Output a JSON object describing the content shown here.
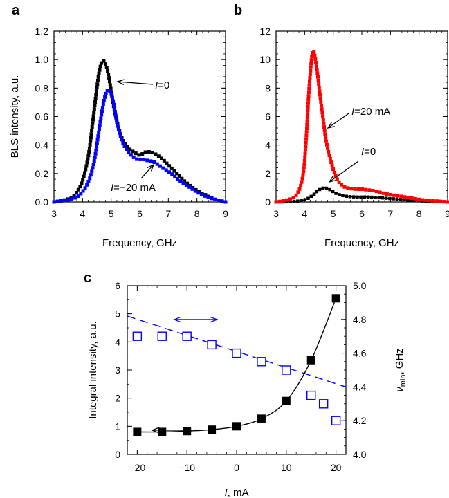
{
  "chart_data": [
    {
      "panel": "a",
      "type": "line",
      "xlabel": "Frequency, GHz",
      "ylabel": "BLS intensity, a.u.",
      "xlim": [
        3,
        9
      ],
      "ylim": [
        0,
        1.2
      ],
      "xticks": [
        "3",
        "4",
        "5",
        "6",
        "7",
        "8",
        "9"
      ],
      "yticks": [
        "0.0",
        "0.2",
        "0.4",
        "0.6",
        "0.8",
        "1.0",
        "1.2"
      ],
      "annotations": [
        {
          "text": "I=0",
          "italic_prefix": "I",
          "rest": "=0"
        },
        {
          "text": "I=−20 mA",
          "italic_prefix": "I",
          "rest": "=−20 mA"
        }
      ],
      "series": [
        {
          "color": "#000000",
          "marker": "square",
          "x": [
            3.0,
            3.3,
            3.6,
            3.8,
            4.0,
            4.2,
            4.35,
            4.5,
            4.6,
            4.7,
            4.8,
            4.9,
            5.0,
            5.1,
            5.25,
            5.4,
            5.6,
            5.8,
            6.0,
            6.2,
            6.4,
            6.6,
            6.8,
            7.0,
            7.3,
            7.6,
            8.0,
            8.3,
            8.6,
            9.0
          ],
          "y": [
            0.0,
            0.01,
            0.03,
            0.07,
            0.15,
            0.32,
            0.55,
            0.8,
            0.93,
            0.99,
            0.97,
            0.9,
            0.78,
            0.66,
            0.53,
            0.44,
            0.38,
            0.35,
            0.33,
            0.35,
            0.35,
            0.33,
            0.3,
            0.26,
            0.2,
            0.14,
            0.08,
            0.05,
            0.02,
            0.0
          ]
        },
        {
          "color": "#0000ff",
          "marker": "square",
          "x": [
            3.0,
            3.3,
            3.6,
            3.9,
            4.2,
            4.4,
            4.55,
            4.7,
            4.8,
            4.9,
            5.0,
            5.1,
            5.2,
            5.35,
            5.5,
            5.7,
            5.9,
            6.1,
            6.3,
            6.5,
            6.8,
            7.1,
            7.4,
            7.7,
            8.0,
            8.3,
            8.6,
            9.0
          ],
          "y": [
            0.0,
            0.01,
            0.02,
            0.05,
            0.14,
            0.28,
            0.47,
            0.66,
            0.75,
            0.79,
            0.76,
            0.68,
            0.56,
            0.45,
            0.38,
            0.33,
            0.3,
            0.3,
            0.29,
            0.28,
            0.24,
            0.2,
            0.15,
            0.11,
            0.07,
            0.04,
            0.02,
            0.0
          ]
        }
      ]
    },
    {
      "panel": "b",
      "type": "line",
      "xlabel": "Frequency, GHz",
      "ylabel": "",
      "xlim": [
        3,
        9
      ],
      "ylim": [
        0,
        12
      ],
      "xticks": [
        "3",
        "4",
        "5",
        "6",
        "7",
        "8",
        "9"
      ],
      "yticks": [
        "0",
        "2",
        "4",
        "6",
        "8",
        "10",
        "12"
      ],
      "annotations": [
        {
          "text": "I=20 mA",
          "italic_prefix": "I",
          "rest": "=20 mA"
        },
        {
          "text": "I=0",
          "italic_prefix": "I",
          "rest": "=0"
        }
      ],
      "series": [
        {
          "color": "#ff0000",
          "marker": "square",
          "x": [
            3.0,
            3.3,
            3.6,
            3.8,
            3.95,
            4.05,
            4.15,
            4.25,
            4.3,
            4.35,
            4.45,
            4.55,
            4.65,
            4.75,
            4.9,
            5.05,
            5.2,
            5.4,
            5.6,
            5.8,
            6.0,
            6.2,
            6.4,
            6.6,
            6.9,
            7.2,
            7.5,
            7.8,
            8.1,
            8.4,
            8.7,
            9.0
          ],
          "y": [
            0.0,
            0.1,
            0.3,
            0.8,
            2.0,
            4.3,
            7.8,
            10.2,
            10.6,
            10.3,
            9.0,
            7.3,
            5.8,
            4.3,
            3.0,
            2.0,
            1.4,
            1.05,
            0.95,
            0.9,
            0.9,
            0.85,
            0.8,
            0.7,
            0.55,
            0.45,
            0.35,
            0.25,
            0.15,
            0.1,
            0.05,
            0.0
          ]
        },
        {
          "color": "#000000",
          "marker": "square",
          "x": [
            3.0,
            3.5,
            4.0,
            4.3,
            4.5,
            4.7,
            4.9,
            5.1,
            5.4,
            5.8,
            6.2,
            6.6,
            7.0,
            7.5,
            8.0,
            8.5,
            9.0
          ],
          "y": [
            0.0,
            0.02,
            0.15,
            0.5,
            0.85,
            0.99,
            0.85,
            0.6,
            0.42,
            0.35,
            0.35,
            0.3,
            0.24,
            0.15,
            0.08,
            0.03,
            0.0
          ]
        }
      ]
    },
    {
      "panel": "c",
      "type": "scatter",
      "xlabel": "I, mA",
      "ylabel": "Integral intensity, a.u.",
      "ylabel_right": "νmin, GHz",
      "xlim": [
        -22,
        22
      ],
      "ylim": [
        0,
        6
      ],
      "ylim_right": [
        4.0,
        5.0
      ],
      "xticks": [
        "−20",
        "−10",
        "0",
        "10",
        "20"
      ],
      "yticks": [
        "0",
        "1",
        "2",
        "3",
        "4",
        "5",
        "6"
      ],
      "yticks_right": [
        "4.0",
        "4.2",
        "4.4",
        "4.6",
        "4.8",
        "5.0"
      ],
      "series": [
        {
          "axis": "left",
          "color": "#000000",
          "marker": "filled-square",
          "fit": "solid",
          "x": [
            -20,
            -15,
            -10,
            -5,
            0,
            5,
            10,
            15,
            20
          ],
          "y": [
            0.8,
            0.8,
            0.83,
            0.88,
            1.0,
            1.27,
            1.9,
            3.35,
            5.55
          ]
        },
        {
          "axis": "right",
          "color": "#0000ff",
          "marker": "open-square",
          "fit": "dashed",
          "x": [
            -20,
            -15,
            -10,
            -5,
            0,
            5,
            10,
            15,
            17.5,
            20
          ],
          "y": [
            4.7,
            4.7,
            4.7,
            4.65,
            4.6,
            4.55,
            4.5,
            4.35,
            4.3,
            4.2
          ],
          "fit_line": {
            "x": [
              -22,
              22
            ],
            "y": [
              4.82,
              4.4
            ]
          }
        }
      ]
    }
  ],
  "panel_labels": [
    "a",
    "b",
    "c"
  ]
}
